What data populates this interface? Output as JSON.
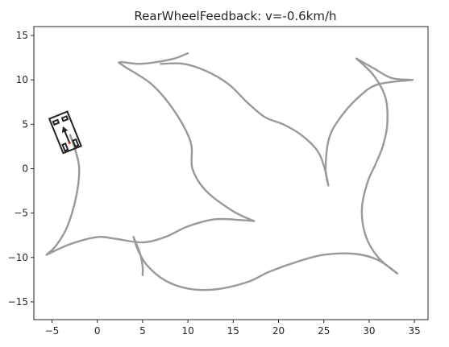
{
  "chart_data": {
    "type": "line",
    "title": "RearWheelFeedback: v=-0.6km/h",
    "xlabel": "",
    "ylabel": "",
    "xlim": [
      -7,
      36.5
    ],
    "ylim": [
      -17,
      16
    ],
    "grid": false,
    "xticks": [
      -5,
      0,
      5,
      10,
      15,
      20,
      25,
      30,
      35
    ],
    "yticks": [
      -15,
      -10,
      -5,
      0,
      5,
      10,
      15
    ],
    "xtick_labels": [
      "−5",
      "0",
      "5",
      "10",
      "15",
      "20",
      "25",
      "30",
      "35"
    ],
    "ytick_labels": [
      "−15",
      "−10",
      "−5",
      "0",
      "5",
      "10",
      "15"
    ],
    "series": [
      {
        "color": "#999999",
        "segments": [
          [
            [
              -5.6,
              -9.7
            ],
            [
              -4.5,
              -8.6
            ],
            [
              -3.3,
              -6.5
            ],
            [
              -2.3,
              -3.0
            ],
            [
              -2.0,
              0.0
            ],
            [
              -2.4,
              2.0
            ],
            [
              -3.0,
              3.8
            ]
          ],
          [
            [
              -5.6,
              -9.7
            ],
            [
              -3.0,
              -8.5
            ],
            [
              0.0,
              -7.7
            ],
            [
              2.0,
              -7.9
            ],
            [
              5.0,
              -8.3
            ],
            [
              7.5,
              -7.7
            ],
            [
              10.0,
              -6.5
            ],
            [
              13.0,
              -5.7
            ],
            [
              16.0,
              -5.8
            ],
            [
              17.3,
              -5.9
            ]
          ],
          [
            [
              17.3,
              -5.9
            ],
            [
              15.0,
              -4.8
            ],
            [
              12.0,
              -2.5
            ],
            [
              10.5,
              0.0
            ],
            [
              10.3,
              3.0
            ],
            [
              8.5,
              6.5
            ],
            [
              6.0,
              9.5
            ],
            [
              3.0,
              11.5
            ],
            [
              2.5,
              12.0
            ],
            [
              4.5,
              11.8
            ],
            [
              6.5,
              12.0
            ],
            [
              8.5,
              12.4
            ],
            [
              10.0,
              13.0
            ]
          ],
          [
            [
              7.0,
              11.8
            ],
            [
              9.5,
              11.8
            ],
            [
              12.0,
              11.0
            ],
            [
              14.5,
              9.5
            ],
            [
              16.5,
              7.5
            ],
            [
              18.5,
              5.8
            ],
            [
              20.5,
              5.0
            ],
            [
              22.5,
              3.8
            ],
            [
              24.3,
              2.0
            ],
            [
              25.1,
              0.0
            ],
            [
              25.5,
              -1.9
            ]
          ],
          [
            [
              25.5,
              -1.9
            ],
            [
              25.2,
              0.0
            ],
            [
              25.6,
              3.5
            ],
            [
              27.0,
              6.0
            ],
            [
              29.0,
              8.2
            ],
            [
              31.0,
              9.5
            ],
            [
              34.8,
              10.0
            ]
          ],
          [
            [
              34.8,
              10.0
            ],
            [
              32.5,
              10.2
            ],
            [
              30.5,
              11.3
            ],
            [
              28.6,
              12.4
            ]
          ],
          [
            [
              28.6,
              12.4
            ],
            [
              30.5,
              10.5
            ],
            [
              31.8,
              8.0
            ],
            [
              32.0,
              5.0
            ],
            [
              31.5,
              2.5
            ],
            [
              30.7,
              0.5
            ],
            [
              29.8,
              -1.6
            ],
            [
              29.2,
              -4.5
            ],
            [
              29.6,
              -7.5
            ],
            [
              31.0,
              -10.0
            ],
            [
              33.1,
              -11.8
            ]
          ],
          [
            [
              33.1,
              -11.8
            ],
            [
              31.0,
              -10.3
            ],
            [
              28.5,
              -9.6
            ],
            [
              25.0,
              -9.7
            ],
            [
              22.0,
              -10.5
            ],
            [
              19.0,
              -11.6
            ],
            [
              16.5,
              -12.8
            ],
            [
              13.0,
              -13.6
            ],
            [
              10.0,
              -13.5
            ],
            [
              7.5,
              -12.6
            ],
            [
              5.5,
              -10.9
            ],
            [
              4.5,
              -9.2
            ],
            [
              4.0,
              -7.7
            ]
          ],
          [
            [
              4.0,
              -7.7
            ],
            [
              4.7,
              -9.5
            ],
            [
              5.0,
              -11.0
            ],
            [
              5.0,
              -12.0
            ]
          ]
        ]
      }
    ],
    "vehicle": {
      "position": [
        -3.5,
        4.0
      ],
      "heading_deg": 112,
      "color": "#222222"
    }
  }
}
